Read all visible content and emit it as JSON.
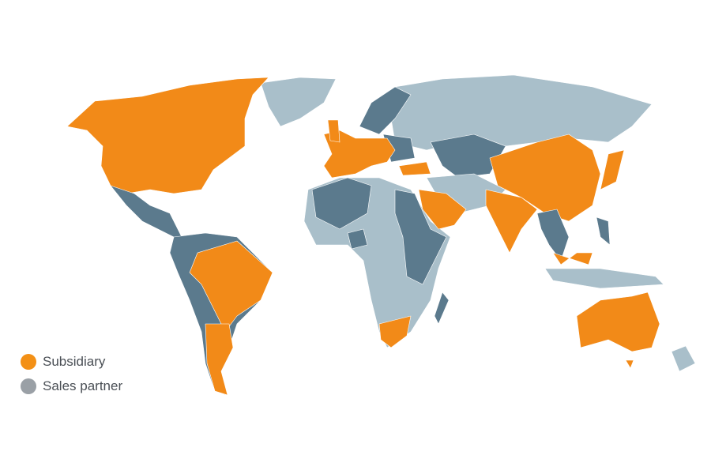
{
  "legend": {
    "items": [
      {
        "label": "Subsidiary",
        "color": "#F39016"
      },
      {
        "label": "Sales partner",
        "color": "#9AA0A6"
      }
    ]
  },
  "colors": {
    "subsidiary": "#F28A18",
    "sales_partner": "#5B7A8D",
    "other": "#A9BFCA"
  }
}
